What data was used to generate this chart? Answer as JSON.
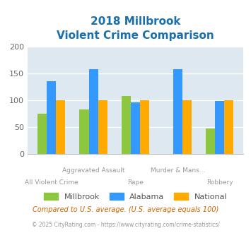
{
  "title_line1": "2018 Millbrook",
  "title_line2": "Violent Crime Comparison",
  "categories": [
    "All Violent Crime",
    "Aggravated Assault",
    "Rape",
    "Murder & Mans...",
    "Robbery"
  ],
  "millbrook": [
    75,
    83,
    108,
    0,
    47
  ],
  "alabama": [
    136,
    158,
    96,
    158,
    98
  ],
  "national": [
    100,
    100,
    100,
    100,
    100
  ],
  "color_millbrook": "#8dc63f",
  "color_alabama": "#3399ff",
  "color_national": "#ffaa00",
  "color_title": "#1a6fad",
  "color_bg_plot": "#dde8f0",
  "color_bg_fig": "#ffffff",
  "ylim": [
    0,
    200
  ],
  "yticks": [
    0,
    50,
    100,
    150,
    200
  ],
  "footer_text": "Compared to U.S. average. (U.S. average equals 100)",
  "footer2_text": "© 2025 CityRating.com - https://www.cityrating.com/crime-statistics/",
  "footer_color": "#cc6600",
  "footer2_color": "#999999",
  "xlabel_color": "#999999",
  "grid_color": "#ffffff",
  "bar_width": 0.22,
  "cat_labels_top": [
    "",
    "Aggravated Assault",
    "",
    "Murder & Mans...",
    ""
  ],
  "cat_labels_bot": [
    "All Violent Crime",
    "",
    "Rape",
    "",
    "Robbery"
  ]
}
